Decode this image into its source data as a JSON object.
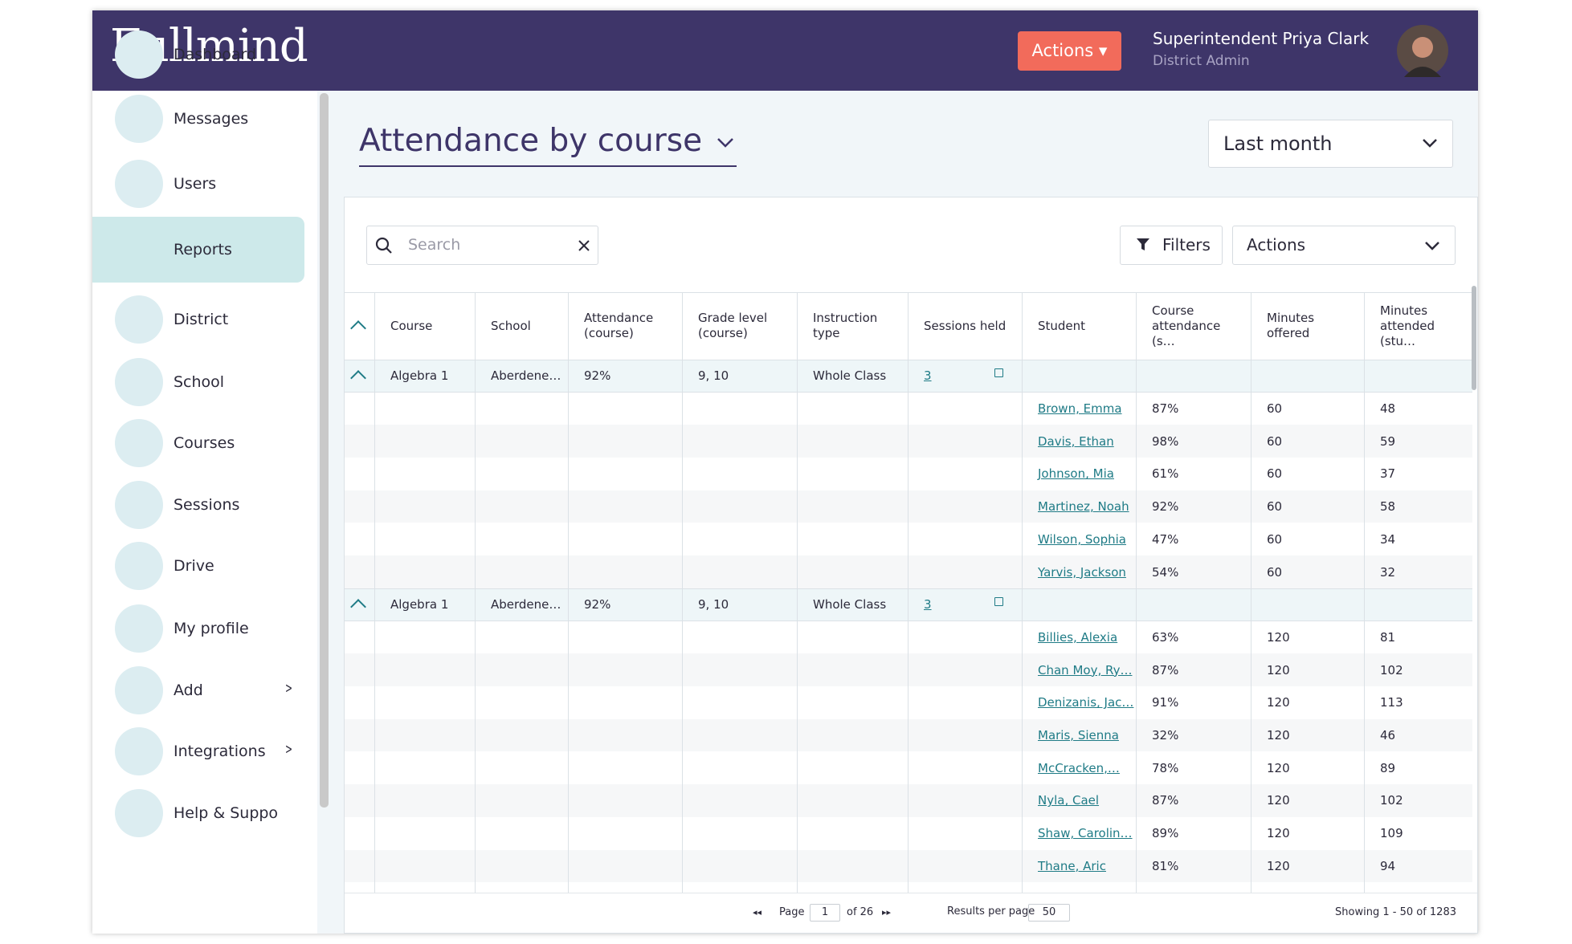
{
  "header": {
    "logo": "Fullmind",
    "actions": "Actions",
    "user_name": "Superintendent Priya Clark",
    "user_role": "District Admin"
  },
  "sidebar": {
    "items": [
      {
        "label": "Dashboard"
      },
      {
        "label": "Messages"
      },
      {
        "label": "Users"
      },
      {
        "label": "Reports",
        "active": true
      },
      {
        "label": "District"
      },
      {
        "label": "School"
      },
      {
        "label": "Courses"
      },
      {
        "label": "Sessions"
      },
      {
        "label": "Drive"
      },
      {
        "label": "My profile"
      },
      {
        "label": "Add",
        "expandable": true
      },
      {
        "label": "Integrations",
        "expandable": true
      },
      {
        "label": "Help & Suppor"
      }
    ]
  },
  "report": {
    "title": "Attendance by course",
    "period": "Last month",
    "search_placeholder": "Search",
    "filters": "Filters",
    "actions": "Actions"
  },
  "table": {
    "columns": [
      "Course",
      "School",
      "Attendance (course)",
      "Grade level (course)",
      "Instruction type",
      "Sessions held",
      "Student",
      "Course attendance (s…",
      "Minutes offered",
      "Minutes attended (stu…"
    ],
    "groups": [
      {
        "course": "Algebra 1",
        "school": "Aberdene…",
        "attendance": "92%",
        "grade_level": "9, 10",
        "instruction_type": "Whole Class",
        "sessions_held": "3",
        "students": [
          [
            "Brown, Emma",
            "87%",
            "60",
            "48"
          ],
          [
            "Davis, Ethan",
            "98%",
            "60",
            "59"
          ],
          [
            "Johnson, Mia",
            "61%",
            "60",
            "37"
          ],
          [
            "Martinez, Noah",
            "92%",
            "60",
            "58"
          ],
          [
            "Wilson, Sophia",
            "47%",
            "60",
            "34"
          ],
          [
            "Yarvis, Jackson",
            "54%",
            "60",
            "32"
          ]
        ]
      },
      {
        "course": "Algebra 1",
        "school": "Aberdene…",
        "attendance": "92%",
        "grade_level": "9, 10",
        "instruction_type": "Whole Class",
        "sessions_held": "3",
        "students": [
          [
            "Billies, Alexia",
            "63%",
            "120",
            "81"
          ],
          [
            "Chan Moy, Ry…",
            "87%",
            "120",
            "102"
          ],
          [
            "Denizanis, Jac…",
            "91%",
            "120",
            "113"
          ],
          [
            "Maris, Sienna",
            "32%",
            "120",
            "46"
          ],
          [
            "McCracken,…",
            "78%",
            "120",
            "89"
          ],
          [
            "Nyla, Cael",
            "87%",
            "120",
            "102"
          ],
          [
            "Shaw, Carolin…",
            "89%",
            "120",
            "109"
          ],
          [
            "Thane, Aric",
            "81%",
            "120",
            "94"
          ]
        ]
      }
    ]
  },
  "footer": {
    "page_label": "Page",
    "page": "1",
    "of_pages": "of 26",
    "per_page_label": "Results per page",
    "per_page": "50",
    "showing": "Showing 1 - 50 of 1283"
  }
}
